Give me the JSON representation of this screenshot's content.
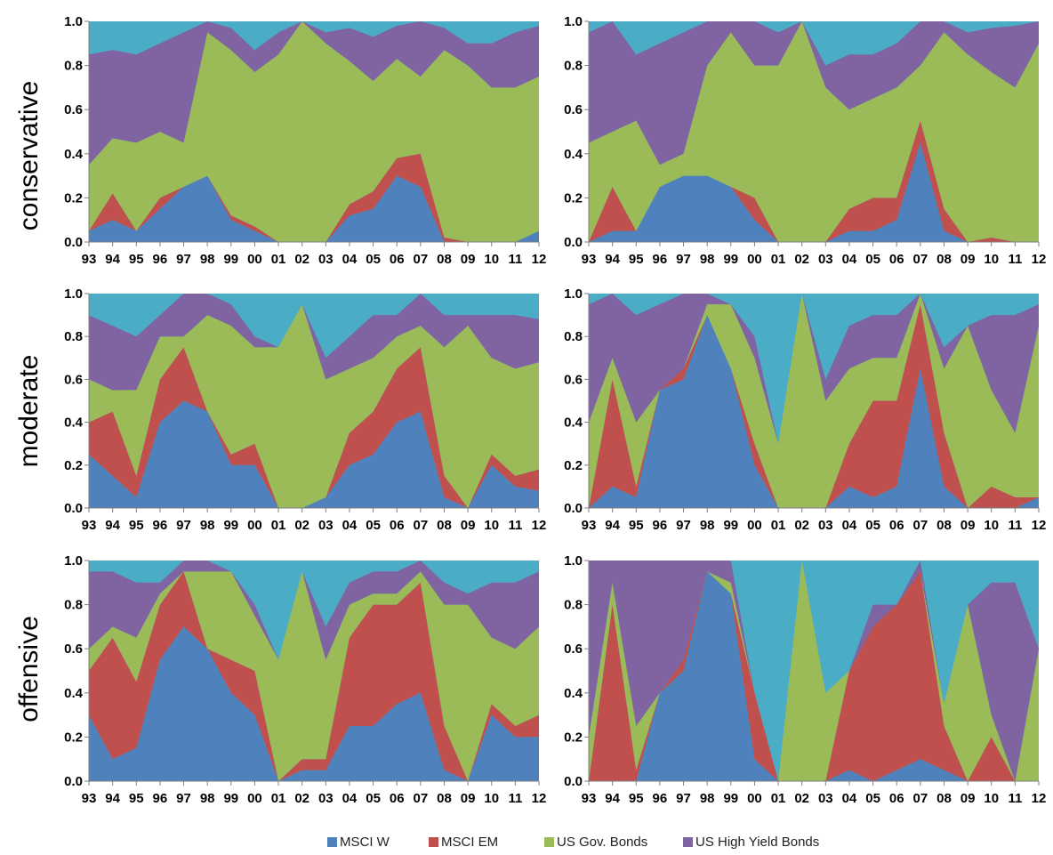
{
  "colors": {
    "msci_w": "#4F81BD",
    "msci_em": "#C0504D",
    "us_gov": "#9BBB59",
    "us_hy": "#8064A2",
    "residual": "#4BACC6"
  },
  "row_labels": [
    "conservative",
    "moderate",
    "offensive"
  ],
  "legend": [
    {
      "name": "MSCI W",
      "color": "#4F81BD"
    },
    {
      "name": "MSCI EM",
      "color": "#C0504D"
    },
    {
      "name": "US Gov. Bonds",
      "color": "#9BBB59"
    },
    {
      "name": "US High Yield Bonds",
      "color": "#8064A2"
    }
  ],
  "chart_data": [
    {
      "type": "area",
      "stacked": true,
      "panel": "conservative (left)",
      "x_tick_labels": [
        "93",
        "94",
        "95",
        "96",
        "97",
        "98",
        "99",
        "00",
        "01",
        "02",
        "03",
        "04",
        "05",
        "06",
        "07",
        "08",
        "09",
        "10",
        "11",
        "12"
      ],
      "y_tick_labels": [
        "0.0",
        "0.2",
        "0.4",
        "0.6",
        "0.8",
        "1.0"
      ],
      "ylim": [
        0,
        1
      ],
      "x": [
        1993,
        1994,
        1995,
        1996,
        1997,
        1998,
        1999,
        2000,
        2001,
        2002,
        2003,
        2004,
        2005,
        2006,
        2007,
        2008,
        2009,
        2010,
        2011,
        2012
      ],
      "series": [
        {
          "name": "MSCI W",
          "values": [
            0.05,
            0.1,
            0.05,
            0.15,
            0.25,
            0.3,
            0.1,
            0.05,
            0.0,
            0.0,
            0.0,
            0.12,
            0.15,
            0.3,
            0.25,
            0.0,
            0.0,
            0.0,
            0.0,
            0.05
          ]
        },
        {
          "name": "MSCI EM",
          "values": [
            0.0,
            0.12,
            0.0,
            0.05,
            0.0,
            0.0,
            0.02,
            0.02,
            0.0,
            0.0,
            0.0,
            0.05,
            0.08,
            0.08,
            0.15,
            0.02,
            0.0,
            0.0,
            0.0,
            0.0
          ]
        },
        {
          "name": "US Gov. Bonds",
          "values": [
            0.3,
            0.25,
            0.4,
            0.3,
            0.2,
            0.65,
            0.75,
            0.7,
            0.85,
            1.0,
            0.9,
            0.65,
            0.5,
            0.45,
            0.35,
            0.85,
            0.8,
            0.7,
            0.7,
            0.7
          ]
        },
        {
          "name": "US High Yield Bonds",
          "values": [
            0.5,
            0.4,
            0.4,
            0.4,
            0.5,
            0.05,
            0.1,
            0.1,
            0.1,
            0.0,
            0.05,
            0.15,
            0.2,
            0.15,
            0.25,
            0.1,
            0.1,
            0.2,
            0.25,
            0.23
          ]
        }
      ]
    },
    {
      "type": "area",
      "stacked": true,
      "panel": "conservative (right)",
      "x_tick_labels": [
        "93",
        "94",
        "95",
        "96",
        "97",
        "98",
        "99",
        "00",
        "01",
        "02",
        "03",
        "04",
        "05",
        "06",
        "07",
        "08",
        "09",
        "10",
        "11",
        "12"
      ],
      "y_tick_labels": [
        "0.0",
        "0.2",
        "0.4",
        "0.6",
        "0.8",
        "1.0"
      ],
      "ylim": [
        0,
        1
      ],
      "x": [
        1993,
        1994,
        1995,
        1996,
        1997,
        1998,
        1999,
        2000,
        2001,
        2002,
        2003,
        2004,
        2005,
        2006,
        2007,
        2008,
        2009,
        2010,
        2011,
        2012
      ],
      "series": [
        {
          "name": "MSCI W",
          "values": [
            0.0,
            0.05,
            0.05,
            0.25,
            0.3,
            0.3,
            0.25,
            0.1,
            0.0,
            0.0,
            0.0,
            0.05,
            0.05,
            0.1,
            0.45,
            0.05,
            0.0,
            0.0,
            0.0,
            0.0
          ]
        },
        {
          "name": "MSCI EM",
          "values": [
            0.0,
            0.2,
            0.0,
            0.0,
            0.0,
            0.0,
            0.0,
            0.1,
            0.0,
            0.0,
            0.0,
            0.1,
            0.15,
            0.1,
            0.1,
            0.1,
            0.0,
            0.02,
            0.0,
            0.0
          ]
        },
        {
          "name": "US Gov. Bonds",
          "values": [
            0.45,
            0.25,
            0.5,
            0.1,
            0.1,
            0.5,
            0.7,
            0.6,
            0.8,
            1.0,
            0.7,
            0.45,
            0.45,
            0.5,
            0.25,
            0.8,
            0.85,
            0.75,
            0.7,
            0.9
          ]
        },
        {
          "name": "US High Yield Bonds",
          "values": [
            0.5,
            0.5,
            0.3,
            0.55,
            0.55,
            0.2,
            0.05,
            0.2,
            0.15,
            0.0,
            0.1,
            0.25,
            0.2,
            0.2,
            0.2,
            0.05,
            0.1,
            0.2,
            0.28,
            0.1
          ]
        }
      ]
    },
    {
      "type": "area",
      "stacked": true,
      "panel": "moderate (left)",
      "x_tick_labels": [
        "93",
        "94",
        "95",
        "96",
        "97",
        "98",
        "99",
        "00",
        "01",
        "02",
        "03",
        "04",
        "05",
        "06",
        "07",
        "08",
        "09",
        "10",
        "11",
        "12"
      ],
      "y_tick_labels": [
        "0.0",
        "0.2",
        "0.4",
        "0.6",
        "0.8",
        "1.0"
      ],
      "ylim": [
        0,
        1
      ],
      "x": [
        1993,
        1994,
        1995,
        1996,
        1997,
        1998,
        1999,
        2000,
        2001,
        2002,
        2003,
        2004,
        2005,
        2006,
        2007,
        2008,
        2009,
        2010,
        2011,
        2012
      ],
      "series": [
        {
          "name": "MSCI W",
          "values": [
            0.25,
            0.15,
            0.05,
            0.4,
            0.5,
            0.45,
            0.2,
            0.2,
            0.0,
            0.0,
            0.05,
            0.2,
            0.25,
            0.4,
            0.45,
            0.05,
            0.0,
            0.2,
            0.1,
            0.08
          ]
        },
        {
          "name": "MSCI EM",
          "values": [
            0.15,
            0.3,
            0.1,
            0.2,
            0.25,
            0.0,
            0.05,
            0.1,
            0.0,
            0.0,
            0.0,
            0.15,
            0.2,
            0.25,
            0.3,
            0.1,
            0.0,
            0.05,
            0.05,
            0.1
          ]
        },
        {
          "name": "US Gov. Bonds",
          "values": [
            0.2,
            0.1,
            0.4,
            0.2,
            0.05,
            0.45,
            0.6,
            0.45,
            0.75,
            0.95,
            0.55,
            0.3,
            0.25,
            0.15,
            0.1,
            0.6,
            0.85,
            0.45,
            0.5,
            0.5
          ]
        },
        {
          "name": "US High Yield Bonds",
          "values": [
            0.3,
            0.3,
            0.25,
            0.1,
            0.2,
            0.1,
            0.1,
            0.05,
            0.0,
            0.0,
            0.1,
            0.15,
            0.2,
            0.1,
            0.15,
            0.15,
            0.05,
            0.2,
            0.25,
            0.2
          ]
        }
      ]
    },
    {
      "type": "area",
      "stacked": true,
      "panel": "moderate (right)",
      "x_tick_labels": [
        "93",
        "94",
        "95",
        "96",
        "97",
        "98",
        "99",
        "00",
        "01",
        "02",
        "03",
        "04",
        "05",
        "06",
        "07",
        "08",
        "09",
        "10",
        "11",
        "12"
      ],
      "y_tick_labels": [
        "0.0",
        "0.2",
        "0.4",
        "0.6",
        "0.8",
        "1.0"
      ],
      "ylim": [
        0,
        1
      ],
      "x": [
        1993,
        1994,
        1995,
        1996,
        1997,
        1998,
        1999,
        2000,
        2001,
        2002,
        2003,
        2004,
        2005,
        2006,
        2007,
        2008,
        2009,
        2010,
        2011,
        2012
      ],
      "series": [
        {
          "name": "MSCI W",
          "values": [
            0.0,
            0.1,
            0.05,
            0.55,
            0.6,
            0.9,
            0.65,
            0.2,
            0.0,
            0.0,
            0.0,
            0.1,
            0.05,
            0.1,
            0.65,
            0.1,
            0.0,
            0.0,
            0.0,
            0.05
          ]
        },
        {
          "name": "MSCI EM",
          "values": [
            0.0,
            0.5,
            0.05,
            0.0,
            0.05,
            0.0,
            0.0,
            0.1,
            0.0,
            0.0,
            0.0,
            0.2,
            0.45,
            0.4,
            0.3,
            0.25,
            0.0,
            0.1,
            0.05,
            0.0
          ]
        },
        {
          "name": "US Gov. Bonds",
          "values": [
            0.4,
            0.1,
            0.3,
            0.0,
            0.0,
            0.05,
            0.3,
            0.4,
            0.3,
            1.0,
            0.5,
            0.35,
            0.2,
            0.2,
            0.05,
            0.3,
            0.85,
            0.45,
            0.3,
            0.8
          ]
        },
        {
          "name": "US High Yield Bonds",
          "values": [
            0.55,
            0.35,
            0.5,
            0.4,
            0.35,
            0.05,
            0.0,
            0.1,
            0.0,
            0.0,
            0.1,
            0.2,
            0.2,
            0.2,
            0.0,
            0.1,
            0.0,
            0.35,
            0.55,
            0.1
          ]
        }
      ]
    },
    {
      "type": "area",
      "stacked": true,
      "panel": "offensive (left)",
      "x_tick_labels": [
        "93",
        "94",
        "95",
        "96",
        "97",
        "98",
        "99",
        "00",
        "01",
        "02",
        "03",
        "04",
        "05",
        "06",
        "07",
        "08",
        "09",
        "10",
        "11",
        "12"
      ],
      "y_tick_labels": [
        "0.0",
        "0.2",
        "0.4",
        "0.6",
        "0.8",
        "1.0"
      ],
      "ylim": [
        0,
        1
      ],
      "x": [
        1993,
        1994,
        1995,
        1996,
        1997,
        1998,
        1999,
        2000,
        2001,
        2002,
        2003,
        2004,
        2005,
        2006,
        2007,
        2008,
        2009,
        2010,
        2011,
        2012
      ],
      "series": [
        {
          "name": "MSCI W",
          "values": [
            0.3,
            0.1,
            0.15,
            0.55,
            0.7,
            0.6,
            0.4,
            0.3,
            0.0,
            0.05,
            0.05,
            0.25,
            0.25,
            0.35,
            0.4,
            0.05,
            0.0,
            0.3,
            0.2,
            0.2
          ]
        },
        {
          "name": "MSCI EM",
          "values": [
            0.2,
            0.55,
            0.3,
            0.25,
            0.25,
            0.0,
            0.15,
            0.2,
            0.0,
            0.05,
            0.05,
            0.4,
            0.55,
            0.45,
            0.5,
            0.2,
            0.0,
            0.05,
            0.05,
            0.1
          ]
        },
        {
          "name": "US Gov. Bonds",
          "values": [
            0.1,
            0.05,
            0.2,
            0.05,
            0.0,
            0.35,
            0.4,
            0.25,
            0.55,
            0.85,
            0.45,
            0.15,
            0.05,
            0.05,
            0.05,
            0.55,
            0.8,
            0.3,
            0.35,
            0.4
          ]
        },
        {
          "name": "US High Yield Bonds",
          "values": [
            0.35,
            0.25,
            0.25,
            0.05,
            0.05,
            0.05,
            0.0,
            0.05,
            0.0,
            0.0,
            0.15,
            0.1,
            0.1,
            0.1,
            0.05,
            0.1,
            0.05,
            0.25,
            0.3,
            0.25
          ]
        }
      ]
    },
    {
      "type": "area",
      "stacked": true,
      "panel": "offensive (right)",
      "x_tick_labels": [
        "93",
        "94",
        "95",
        "96",
        "97",
        "98",
        "99",
        "00",
        "01",
        "02",
        "03",
        "04",
        "05",
        "06",
        "07",
        "08",
        "09",
        "10",
        "11",
        "12"
      ],
      "y_tick_labels": [
        "0.0",
        "0.2",
        "0.4",
        "0.6",
        "0.8",
        "1.0"
      ],
      "ylim": [
        0,
        1
      ],
      "x": [
        1993,
        1994,
        1995,
        1996,
        1997,
        1998,
        1999,
        2000,
        2001,
        2002,
        2003,
        2004,
        2005,
        2006,
        2007,
        2008,
        2009,
        2010,
        2011,
        2012
      ],
      "series": [
        {
          "name": "MSCI W",
          "values": [
            0.0,
            0.0,
            0.0,
            0.4,
            0.5,
            0.95,
            0.85,
            0.1,
            0.0,
            0.0,
            0.0,
            0.05,
            0.0,
            0.05,
            0.1,
            0.05,
            0.0,
            0.0,
            0.0,
            0.0
          ]
        },
        {
          "name": "MSCI EM",
          "values": [
            0.0,
            0.8,
            0.05,
            0.0,
            0.05,
            0.0,
            0.0,
            0.3,
            0.0,
            0.0,
            0.0,
            0.45,
            0.7,
            0.75,
            0.85,
            0.2,
            0.0,
            0.2,
            0.0,
            0.0
          ]
        },
        {
          "name": "US Gov. Bonds",
          "values": [
            0.2,
            0.1,
            0.2,
            0.0,
            0.0,
            0.0,
            0.05,
            0.0,
            0.0,
            1.0,
            0.4,
            0.0,
            0.0,
            0.0,
            0.0,
            0.1,
            0.8,
            0.1,
            0.0,
            0.6
          ]
        },
        {
          "name": "US High Yield Bonds",
          "values": [
            0.8,
            0.1,
            0.75,
            0.6,
            0.45,
            0.05,
            0.1,
            0.0,
            0.0,
            0.0,
            0.0,
            0.0,
            0.1,
            0.0,
            0.05,
            0.0,
            0.0,
            0.6,
            0.9,
            0.0
          ]
        }
      ]
    }
  ]
}
